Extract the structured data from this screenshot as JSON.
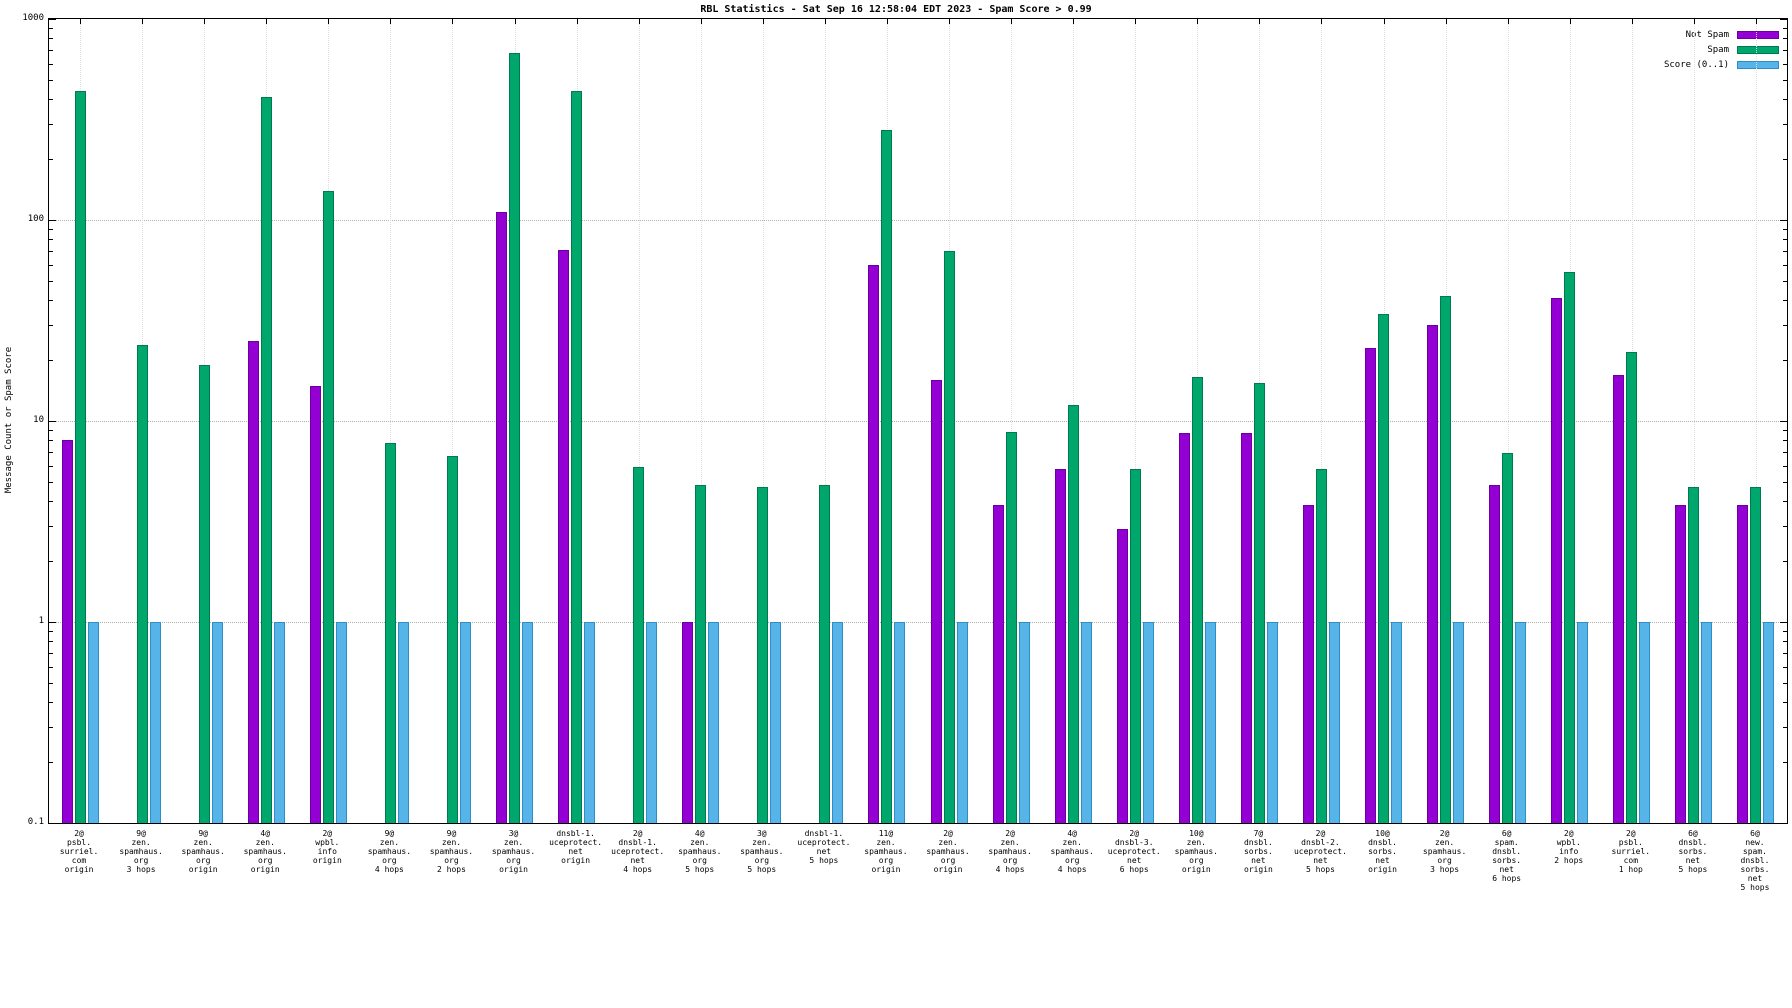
{
  "chart_data": {
    "type": "bar",
    "scale": "log-y",
    "title": "RBL Statistics - Sat Sep 16 12:58:04 EDT 2023 - Spam Score > 0.99",
    "ylabel": "Message Count or Spam Score",
    "xlabel": "",
    "ylim": [
      0.1,
      1000
    ],
    "y_ticks": [
      1000,
      100,
      10,
      1,
      0.1
    ],
    "grid": true,
    "legend_position": "top-right",
    "categories": [
      [
        "2@",
        "psbl.",
        "surriel.",
        "com",
        "origin"
      ],
      [
        "9@",
        "zen.",
        "spamhaus.",
        "org",
        "3 hops"
      ],
      [
        "9@",
        "zen.",
        "spamhaus.",
        "org",
        "origin"
      ],
      [
        "4@",
        "zen.",
        "spamhaus.",
        "org",
        "origin"
      ],
      [
        "2@",
        "wpbl.",
        "info",
        "origin"
      ],
      [
        "9@",
        "zen.",
        "spamhaus.",
        "org",
        "4 hops"
      ],
      [
        "9@",
        "zen.",
        "spamhaus.",
        "org",
        "2 hops"
      ],
      [
        "3@",
        "zen.",
        "spamhaus.",
        "org",
        "origin"
      ],
      [
        "dnsbl-1.",
        "uceprotect.",
        "net",
        "origin"
      ],
      [
        "2@",
        "dnsbl-1.",
        "uceprotect.",
        "net",
        "4 hops"
      ],
      [
        "4@",
        "zen.",
        "spamhaus.",
        "org",
        "5 hops"
      ],
      [
        "3@",
        "zen.",
        "spamhaus.",
        "org",
        "5 hops"
      ],
      [
        "dnsbl-1.",
        "uceprotect.",
        "net",
        "5 hops"
      ],
      [
        "11@",
        "zen.",
        "spamhaus.",
        "org",
        "origin"
      ],
      [
        "2@",
        "zen.",
        "spamhaus.",
        "org",
        "origin"
      ],
      [
        "2@",
        "zen.",
        "spamhaus.",
        "org",
        "4 hops"
      ],
      [
        "4@",
        "zen.",
        "spamhaus.",
        "org",
        "4 hops"
      ],
      [
        "2@",
        "dnsbl-3.",
        "uceprotect.",
        "net",
        "6 hops"
      ],
      [
        "10@",
        "zen.",
        "spamhaus.",
        "org",
        "origin"
      ],
      [
        "7@",
        "dnsbl.",
        "sorbs.",
        "net",
        "origin"
      ],
      [
        "2@",
        "dnsbl-2.",
        "uceprotect.",
        "net",
        "5 hops"
      ],
      [
        "10@",
        "dnsbl.",
        "sorbs.",
        "net",
        "origin"
      ],
      [
        "2@",
        "zen.",
        "spamhaus.",
        "org",
        "3 hops"
      ],
      [
        "6@",
        "spam.",
        "dnsbl.",
        "sorbs.",
        "net",
        "6 hops"
      ],
      [
        "2@",
        "wpbl.",
        "info",
        "2 hops"
      ],
      [
        "2@",
        "psbl.",
        "surriel.",
        "com",
        "1 hop"
      ],
      [
        "6@",
        "dnsbl.",
        "sorbs.",
        "net",
        "5 hops"
      ],
      [
        "6@",
        "new.",
        "spam.",
        "dnsbl.",
        "sorbs.",
        "net",
        "5 hops"
      ]
    ],
    "series": [
      {
        "name": "Not Spam",
        "color": "#9400d3",
        "border": "#6a00a0",
        "values": [
          8,
          null,
          null,
          25,
          15,
          null,
          null,
          110,
          71,
          null,
          1,
          null,
          null,
          60,
          16,
          3.8,
          5.8,
          2.9,
          8.7,
          8.7,
          3.8,
          23,
          30,
          4.8,
          41,
          17,
          3.8,
          3.8
        ]
      },
      {
        "name": "Spam",
        "color": "#00a76c",
        "border": "#007a4e",
        "values": [
          440,
          24,
          19,
          410,
          140,
          7.8,
          6.7,
          680,
          440,
          5.9,
          4.8,
          4.7,
          4.8,
          280,
          70,
          8.8,
          12,
          5.8,
          16.5,
          15.5,
          5.8,
          34,
          42,
          6.9,
          55,
          22,
          4.7,
          4.7
        ]
      },
      {
        "name": "Score (0..1)",
        "color": "#56b4e9",
        "border": "#2e8fc4",
        "values": [
          1,
          1,
          1,
          1,
          1,
          1,
          1,
          1,
          1,
          1,
          1,
          1,
          1,
          1,
          1,
          1,
          1,
          1,
          1,
          1,
          1,
          1,
          1,
          1,
          1,
          1,
          1,
          1
        ]
      }
    ]
  }
}
